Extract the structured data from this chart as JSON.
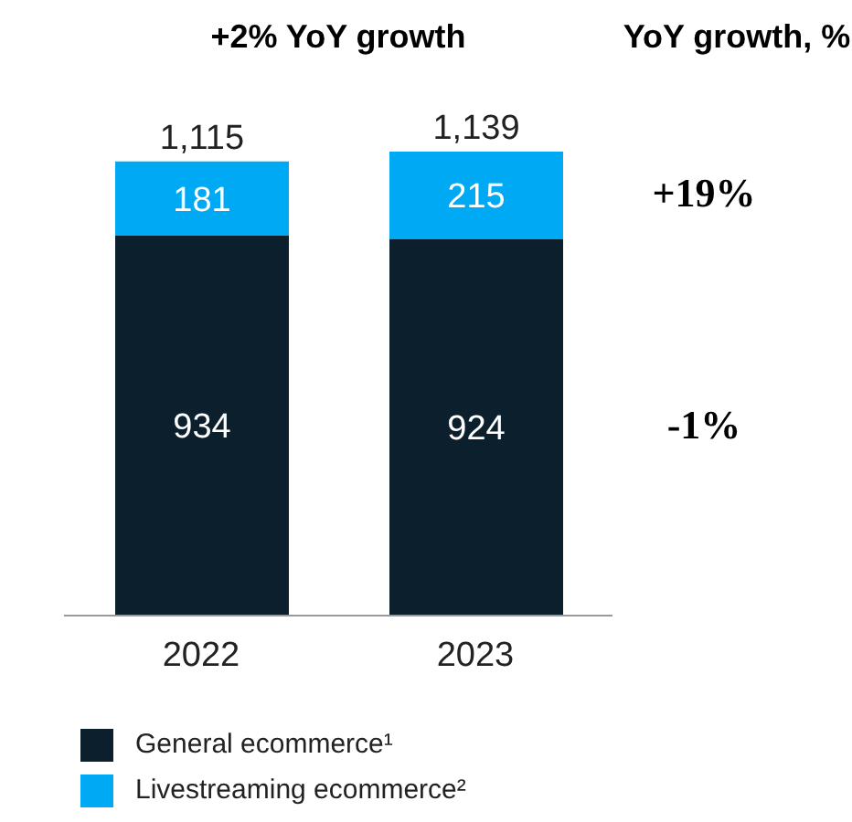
{
  "chart_data": {
    "type": "bar",
    "title": "+2% YoY growth",
    "categories": [
      "2022",
      "2023"
    ],
    "stacked": true,
    "data_labels": true,
    "totals": [
      "1,115",
      "1,139"
    ],
    "legend": "bottom left",
    "series": [
      {
        "name": "General ecommerce¹",
        "color": "#0b1f2d",
        "values": [
          934,
          924
        ]
      },
      {
        "name": "Livestreaming ecommerce²",
        "color": "#00a9f4",
        "values": [
          181,
          215
        ]
      }
    ],
    "annotations": [
      "YoY growth, %",
      "+19%",
      "-1%"
    ]
  }
}
